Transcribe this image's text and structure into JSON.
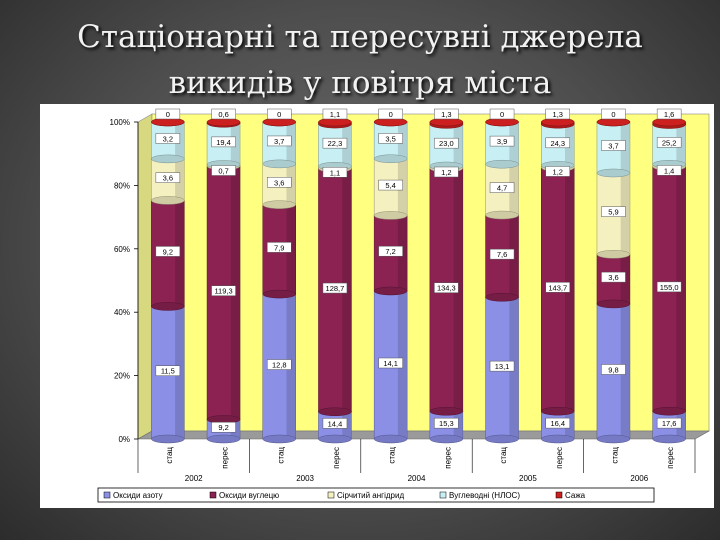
{
  "slide": {
    "title_line1": "Стаціонарні та пересувні джерела",
    "title_line2": "викидів у повітря міста"
  },
  "chart_data": {
    "type": "bar",
    "stacked": "100%",
    "groups": [
      "2002",
      "2003",
      "2004",
      "2005",
      "2006"
    ],
    "categories": [
      "стац",
      "перес",
      "стац",
      "перес",
      "стац",
      "перес",
      "стац",
      "перес",
      "стац",
      "перес"
    ],
    "series": [
      {
        "name": "Оксиди азоту",
        "color": "#8b8fe6",
        "values": [
          11.5,
          9.2,
          12.8,
          14.4,
          14.1,
          15.3,
          13.1,
          16.4,
          9.8,
          17.6
        ]
      },
      {
        "name": "Оксиди вуглецю",
        "color": "#8b2252",
        "values": [
          9.2,
          119.3,
          7.9,
          128.7,
          7.2,
          134.3,
          7.6,
          143.7,
          3.6,
          155.0
        ]
      },
      {
        "name": "Сірчитий ангідрид",
        "color": "#f4f0c0",
        "values": [
          3.6,
          0.7,
          3.6,
          1.1,
          5.4,
          1.2,
          4.7,
          1.2,
          5.9,
          1.4
        ]
      },
      {
        "name": "Вуглеводні (НЛОС)",
        "color": "#c8f0f4",
        "values": [
          3.2,
          19.4,
          3.7,
          22.3,
          3.5,
          23.0,
          3.9,
          24.3,
          3.7,
          25.2
        ]
      },
      {
        "name": "Сажа",
        "color": "#cc1f1f",
        "values": [
          0,
          0.6,
          0,
          1.1,
          0,
          1.3,
          0,
          1.3,
          0,
          1.6
        ]
      }
    ],
    "value_labels": [
      [
        "11,5",
        "9,2",
        "12,8",
        "14,4",
        "14,1",
        "15,3",
        "13,1",
        "16,4",
        "9,8",
        "17,6"
      ],
      [
        "9,2",
        "119,3",
        "7,9",
        "128,7",
        "7,2",
        "134,3",
        "7,6",
        "143,7",
        "3,6",
        "155,0"
      ],
      [
        "3,6",
        "0,7",
        "3,6",
        "1,1",
        "5,4",
        "1,2",
        "4,7",
        "1,2",
        "5,9",
        "1,4"
      ],
      [
        "3,2",
        "19,4",
        "3,7",
        "22,3",
        "3,5",
        "23,0",
        "3,9",
        "24,3",
        "3,7",
        "25,2"
      ],
      [
        "0",
        "0,6",
        "0",
        "1,1",
        "0",
        "1,3",
        "0",
        "1,3",
        "0",
        "1,6"
      ]
    ],
    "y_ticks": [
      "0%",
      "20%",
      "40%",
      "60%",
      "80%",
      "100%"
    ],
    "ylim": [
      0,
      100
    ],
    "legend_position": "bottom",
    "grid": false,
    "wall_color": "#ffff80"
  }
}
